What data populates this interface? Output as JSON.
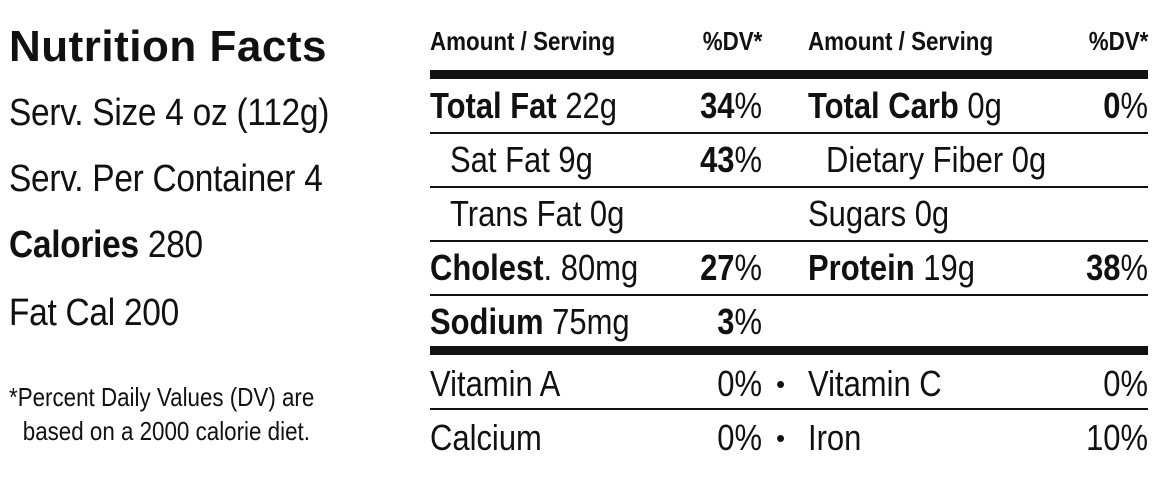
{
  "title": "Nutrition Facts",
  "serving_size": "Serv. Size 4 oz (112g)",
  "servings_per_container": "Serv. Per Container 4",
  "calories": {
    "label": "Calories",
    "value": "280"
  },
  "fat_calories": "Fat Cal 200",
  "footnote": {
    "line1": "*Percent Daily Values (DV) are",
    "line2": "based on a 2000 calorie diet."
  },
  "headers": {
    "amount_left": "Amount / Serving",
    "dv_left": "%DV*",
    "amount_right": "Amount / Serving",
    "dv_right": "%DV*"
  },
  "nutrients_left": {
    "total_fat": {
      "label": "Total Fat",
      "amount": "22g",
      "dv_num": "34",
      "dv_pct": "%"
    },
    "sat_fat": {
      "label": "Sat Fat 9g",
      "dv_num": "43",
      "dv_pct": "%"
    },
    "trans_fat": {
      "label": "Trans Fat 0g"
    },
    "cholesterol": {
      "label": "Cholest",
      "amount": ". 80mg",
      "dv_num": "27",
      "dv_pct": "%"
    },
    "sodium": {
      "label": "Sodium",
      "amount": "75mg",
      "dv_num": "3",
      "dv_pct": "%"
    }
  },
  "nutrients_right": {
    "total_carb": {
      "label": "Total Carb",
      "amount": "0g",
      "dv_num": "0",
      "dv_pct": "%"
    },
    "fiber": {
      "label": "Dietary Fiber 0g"
    },
    "sugars": {
      "label": "Sugars 0g"
    },
    "protein": {
      "label": "Protein",
      "amount": "19g",
      "dv_num": "38",
      "dv_pct": "%"
    }
  },
  "vitamins": {
    "vitamin_a": {
      "label": "Vitamin A",
      "value": "0%"
    },
    "vitamin_c": {
      "label": "Vitamin C",
      "value": "0%"
    },
    "calcium": {
      "label": "Calcium",
      "value": "0%"
    },
    "iron": {
      "label": "Iron",
      "value": "10%"
    },
    "separator": "•"
  }
}
